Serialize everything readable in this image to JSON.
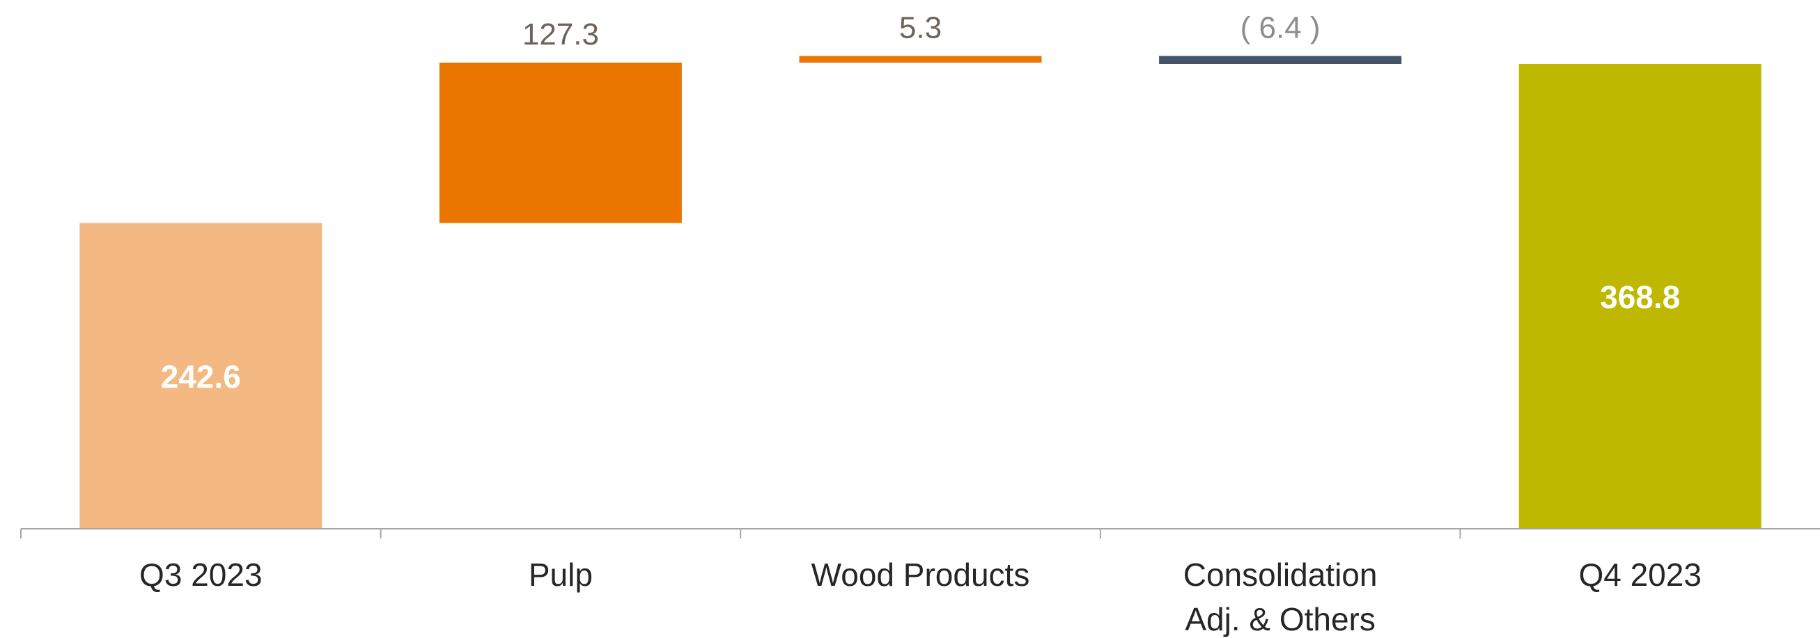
{
  "chart_data": {
    "type": "bar",
    "subtype": "waterfall",
    "title": "",
    "xlabel": "",
    "ylabel": "",
    "grid": false,
    "legend": "none",
    "ylim": [
      0,
      368.8
    ],
    "categories": [
      {
        "label_lines": [
          "Q3 2023"
        ]
      },
      {
        "label_lines": [
          "Pulp"
        ]
      },
      {
        "label_lines": [
          "Wood Products"
        ]
      },
      {
        "label_lines": [
          "Consolidation",
          "Adj. & Others"
        ]
      },
      {
        "label_lines": [
          "Q4 2023"
        ]
      }
    ],
    "bars": [
      {
        "kind": "total",
        "value": 242.6,
        "label": "242.6",
        "color": "#F4B982",
        "label_color": "#FFFFFF",
        "label_position": "inside"
      },
      {
        "kind": "delta",
        "value": 127.3,
        "label": "127.3",
        "color": "#EA7600",
        "label_color": "#6F6259",
        "label_position": "above"
      },
      {
        "kind": "delta",
        "value": 5.3,
        "label": "5.3",
        "color": "#EA7600",
        "label_color": "#6F6259",
        "label_position": "above"
      },
      {
        "kind": "delta",
        "value": -6.4,
        "label": "( 6.4 )",
        "color": "#44546A",
        "label_color": "#8C8C8C",
        "label_position": "above"
      },
      {
        "kind": "total",
        "value": 368.8,
        "label": "368.8",
        "color": "#BFB800",
        "label_color": "#FFFFFF",
        "label_position": "inside"
      }
    ],
    "axis_color": "#A6A6A6",
    "tick_label_color": "#262626"
  }
}
